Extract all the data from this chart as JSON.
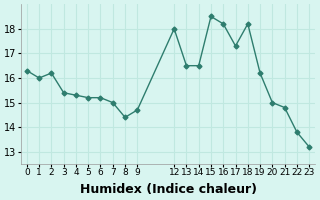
{
  "x": [
    0,
    1,
    2,
    3,
    4,
    5,
    6,
    7,
    8,
    9,
    12,
    13,
    14,
    15,
    16,
    17,
    18,
    19,
    20,
    21,
    22,
    23
  ],
  "y": [
    16.3,
    16.0,
    16.2,
    15.4,
    15.3,
    15.2,
    15.2,
    15.0,
    14.4,
    14.7,
    18.0,
    16.5,
    16.5,
    18.5,
    18.2,
    17.3,
    18.2,
    16.2,
    15.0,
    14.8,
    13.8,
    13.2
  ],
  "line_color": "#2e7d6e",
  "marker_color": "#2e7d6e",
  "bg_color": "#d8f5f0",
  "grid_color": "#c0e8e0",
  "xlabel": "Humidex (Indice chaleur)",
  "xlabel_fontsize": 9,
  "yticks": [
    13,
    14,
    15,
    16,
    17,
    18
  ],
  "xtick_labels": [
    "0",
    "1",
    "2",
    "3",
    "4",
    "5",
    "6",
    "7",
    "8",
    "9",
    "12",
    "13",
    "14",
    "15",
    "16",
    "17",
    "18",
    "19",
    "20",
    "21",
    "22",
    "23"
  ],
  "ylim": [
    12.5,
    19.0
  ],
  "xlim": [
    -0.5,
    23.5
  ]
}
